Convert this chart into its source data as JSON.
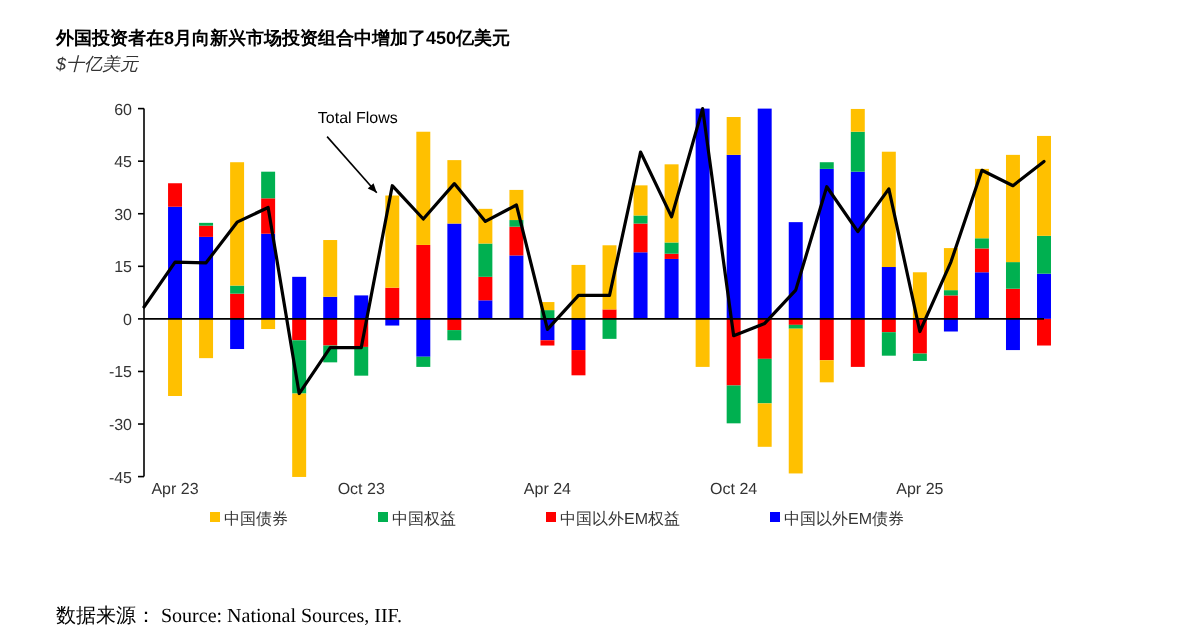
{
  "chart_data": {
    "type": "bar",
    "title": "外国投资者在8月向新兴市场投资组合中增加了450亿美元",
    "subtitle": "$十亿美元",
    "categories": [
      null,
      "Apr 23",
      null,
      null,
      null,
      null,
      null,
      "Oct 23",
      null,
      null,
      null,
      null,
      null,
      "Apr 24",
      null,
      null,
      null,
      null,
      null,
      "Oct 24",
      null,
      null,
      null,
      null,
      null,
      "Apr 25",
      null,
      null,
      null,
      null
    ],
    "stacked": true,
    "legend": "bottom",
    "ylim": [
      -45,
      60
    ],
    "yticks": [
      -45,
      -30,
      -15,
      0,
      15,
      30,
      45,
      60
    ],
    "series": [
      {
        "name": "中国以外EM债券",
        "color": "#0000ff",
        "values": [
          null,
          32,
          23.4,
          -8.6,
          24.3,
          12,
          6.3,
          6.7,
          -1.9,
          -10.8,
          27.2,
          5.3,
          18.1,
          -6.1,
          -8.9,
          null,
          19,
          17.1,
          60,
          46.8,
          60,
          27.6,
          42.8,
          42,
          14.8,
          null,
          -3.6,
          13.3,
          -8.9,
          12.9
        ]
      },
      {
        "name": "中国以外EM权益",
        "color": "#ff0000",
        "values": [
          null,
          6.7,
          3.2,
          7.2,
          10.1,
          -6.1,
          -7.6,
          -8,
          8.9,
          21.1,
          -3.2,
          6.7,
          8.2,
          -1.5,
          -7.2,
          2.7,
          8.2,
          1.5,
          0,
          -19,
          -11.4,
          -1.7,
          -11.8,
          -13.7,
          -3.8,
          -9.9,
          6.7,
          6.8,
          8.6,
          -7.6
        ]
      },
      {
        "name": "中国权益",
        "color": "#00b050",
        "values": [
          null,
          0,
          0.8,
          2.3,
          7.6,
          -15.2,
          -4.8,
          -8.2,
          0,
          -2.9,
          -2.9,
          9.5,
          1.9,
          2.5,
          0,
          -5.7,
          2.3,
          3.2,
          0,
          -10.8,
          -12.7,
          -1.1,
          1.9,
          11.4,
          -6.7,
          -2.1,
          1.5,
          2.9,
          7.6,
          10.8
        ]
      },
      {
        "name": "中国债券",
        "color": "#ffc000",
        "values": [
          null,
          -22,
          -11.2,
          35.2,
          -2.9,
          -23.8,
          16.2,
          0,
          26.3,
          32.3,
          18.1,
          9.9,
          8.6,
          2.3,
          15.4,
          18.3,
          8.6,
          22.3,
          -13.7,
          10.8,
          -12.4,
          -41.3,
          -6.3,
          6.5,
          32.9,
          13.3,
          12,
          19.8,
          30.6,
          28.5
        ]
      },
      {
        "name": "Total Flows",
        "type": "line",
        "color": "#000000",
        "values": [
          3.4,
          16.2,
          16,
          27.6,
          31.8,
          -21.3,
          -8.2,
          -8.2,
          38,
          28.5,
          38.6,
          27.8,
          32.5,
          -3,
          6.7,
          6.7,
          47.6,
          29.1,
          60,
          -4.8,
          -1.3,
          8.2,
          37.7,
          24.9,
          37.1,
          -3.6,
          16.2,
          42.4,
          38,
          44.9
        ]
      }
    ],
    "annotations": [
      "数据来源： Source: National Sources, IIF."
    ]
  }
}
